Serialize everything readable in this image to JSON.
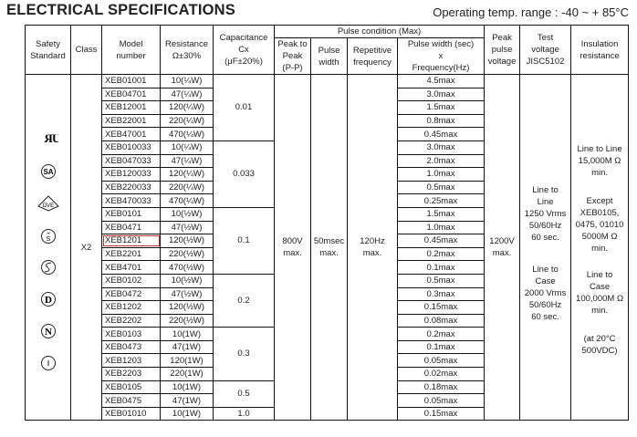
{
  "title": "ELECTRICAL SPECIFICATIONS",
  "operating_temp": "Operating temp. range : -40 ~ + 85°C",
  "headers": {
    "safety": "Safety\nStandard",
    "class": "Class",
    "model": "Model\nnumber",
    "resistance": "Resistance\nΩ±30%",
    "capacitance": "Capacitance\nCx\n(μF±20%)",
    "pulse_condition": "Pulse condition (Max)",
    "peak_to_peak": "Peak to\nPeak\n(P-P)",
    "pulse_width": "Pulse\nwidth",
    "repetitive": "Repetitive\nfrequency",
    "pw_freq": "Pulse width (sec)\nx\nFrequency(Hz)",
    "peak_pulse_voltage": "Peak\npulse\nvoltage",
    "test_voltage": "Test\nvoltage\nJISC5102",
    "insulation": "Insulation\nresistance"
  },
  "safety_icons": [
    "ul-recognized-icon",
    "csa-icon",
    "vde-icon",
    "sev-icon",
    "semko-icon",
    "demko-icon",
    "nemko-icon",
    "fimko-icon"
  ],
  "class": "X2",
  "peak_to_peak": "800V\nmax.",
  "pulse_width": "50msec\nmax.",
  "repetitive": "120Hz\nmax.",
  "peak_pulse_voltage": "1200V\nmax.",
  "test_voltage": {
    "line_to_line": "Line to\nLine\n1250 Vrms\n50/60Hz\n60 sec.",
    "line_to_case": "Line to\nCase\n2000 Vrms\n50/60Hz\n60 sec."
  },
  "insulation": {
    "line_to_line": "Line to Line\n15,000M Ω\nmin.",
    "except": "Except\nXEB0105,\n0475, 01010\n5000M Ω\nmin.",
    "line_to_case": "Line to\nCase\n100,000M Ω\nmin.",
    "condition": "(at 20°C\n500VDC)"
  },
  "capacitance_groups": [
    {
      "value": "0.01",
      "rows": 5
    },
    {
      "value": "0.033",
      "rows": 5
    },
    {
      "value": "0.1",
      "rows": 5
    },
    {
      "value": "0.2",
      "rows": 4
    },
    {
      "value": "0.3",
      "rows": 4
    },
    {
      "value": "0.5",
      "rows": 2
    },
    {
      "value": "1.0",
      "rows": 1
    }
  ],
  "rows": [
    {
      "model": "XEB01001",
      "res": "10(¼W)",
      "pw": "4.5max"
    },
    {
      "model": "XEB04701",
      "res": "47(¼W)",
      "pw": "3.0max"
    },
    {
      "model": "XEB12001",
      "res": "120(¼W)",
      "pw": "1.5max"
    },
    {
      "model": "XEB22001",
      "res": "220(¼W)",
      "pw": "0.8max"
    },
    {
      "model": "XEB47001",
      "res": "470(¼W)",
      "pw": "0.45max"
    },
    {
      "model": "XEB010033",
      "res": "10(¼W)",
      "pw": "3.0max"
    },
    {
      "model": "XEB047033",
      "res": "47(¼W)",
      "pw": "2.0max"
    },
    {
      "model": "XEB120033",
      "res": "120(¼W)",
      "pw": "1.0max"
    },
    {
      "model": "XEB220033",
      "res": "220(¼W)",
      "pw": "0.5max"
    },
    {
      "model": "XEB470033",
      "res": "470(¼W)",
      "pw": "0.25max"
    },
    {
      "model": "XEB0101",
      "res": "10(½W)",
      "pw": "1.5max"
    },
    {
      "model": "XEB0471",
      "res": "47(½W)",
      "pw": "1.0max"
    },
    {
      "model": "XEB1201",
      "res": "120(½W)",
      "pw": "0.45max",
      "highlight": true
    },
    {
      "model": "XEB2201",
      "res": "220(½W)",
      "pw": "0.2max"
    },
    {
      "model": "XEB4701",
      "res": "470(½W)",
      "pw": "0.1max"
    },
    {
      "model": "XEB0102",
      "res": "10(½W)",
      "pw": "0.5max"
    },
    {
      "model": "XEB0472",
      "res": "47(½W)",
      "pw": "0.3max"
    },
    {
      "model": "XEB1202",
      "res": "120(½W)",
      "pw": "0.15max"
    },
    {
      "model": "XEB2202",
      "res": "220(½W)",
      "pw": "0.08max"
    },
    {
      "model": "XEB0103",
      "res": "10(1W)",
      "pw": "0.2max"
    },
    {
      "model": "XEB0473",
      "res": "47(1W)",
      "pw": "0.1max"
    },
    {
      "model": "XEB1203",
      "res": "120(1W)",
      "pw": "0.05max"
    },
    {
      "model": "XEB2203",
      "res": "220(1W)",
      "pw": "0.02max"
    },
    {
      "model": "XEB0105",
      "res": "10(1W)",
      "pw": "0.18max"
    },
    {
      "model": "XEB0475",
      "res": "47(1W)",
      "pw": "0.05max"
    },
    {
      "model": "XEB01010",
      "res": "10(1W)",
      "pw": "0.15max"
    }
  ]
}
